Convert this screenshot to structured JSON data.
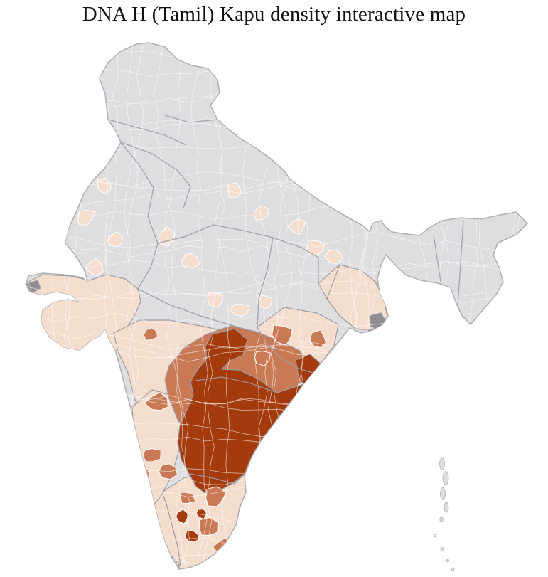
{
  "title": "DNA H (Tamil) Kapu density interactive map",
  "map": {
    "name": "india-district-density-choropleth",
    "colors": {
      "background": "#ffffff",
      "no_data": "#dedee1",
      "no_data_dark": "#8d8d92",
      "low": "#f4ddcd",
      "mid": "#c97a54",
      "high": "#a33b0d",
      "district_border": "#ffffff",
      "state_border": "#9c9ca2",
      "coast": "#b0b0b5",
      "title_color": "#111111"
    },
    "levels": [
      "no_data",
      "low",
      "mid",
      "high"
    ],
    "regions": {
      "gujarat": "low",
      "maharashtra": "low",
      "odisha": "low",
      "east-belt": "low",
      "karnataka": "low",
      "kerala": "low",
      "tamil-nadu": "low",
      "deccan-belt": "mid",
      "andhra-core": "high",
      "srikakulam-coast": "high",
      "kolkata-district": "no_data_dark",
      "kutch-tip": "no_data_dark",
      "raj-1": "low",
      "raj-2": "low",
      "raj-3": "low",
      "raj-4": "low",
      "mp-1": "low",
      "mp-2": "low",
      "mp-3": "low",
      "mp-4": "low",
      "mp-5": "low",
      "up-1": "low",
      "up-2": "low",
      "up-3": "low",
      "up-4": "low",
      "bihar-1": "low",
      "ne-1": "low",
      "odisha-m1": "mid",
      "odisha-m2": "mid",
      "chhattisgarh-m1": "mid",
      "maharashtra-m1": "mid",
      "karnataka-m1": "mid",
      "karnataka-m2": "mid",
      "karnataka-m3": "mid",
      "karnataka-m4": "mid",
      "tn-m1": "mid",
      "tn-m2": "mid",
      "tn-m3": "mid",
      "tn-m4": "mid",
      "tn-h1": "high",
      "tn-h2": "high",
      "tn-h3": "high"
    }
  }
}
